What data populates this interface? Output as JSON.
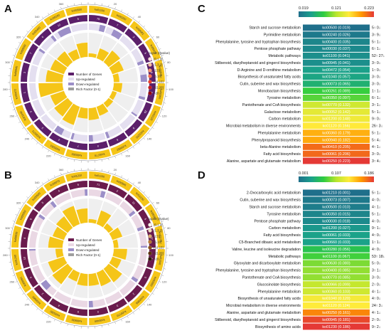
{
  "panels": {
    "a": "A",
    "b": "B",
    "c": "C",
    "d": "D"
  },
  "colors": {
    "yellow": "#f5c518",
    "purple": "#5b1f6a",
    "lavender": "#9c8fc8",
    "ring_gray": "#bdbdbd",
    "gradient": [
      "#1f6f8b",
      "#1aa08c",
      "#2ecc40",
      "#b8e62d",
      "#ffeb3b",
      "#ff9800",
      "#e53935"
    ]
  },
  "legend_a": {
    "title_a": "-log10 (Qvalue)",
    "scale_a": [
      "(0,1.3]",
      "(1.3,2]",
      "(2,5]",
      "(5,10]",
      "(10,15]",
      "(15,20]",
      ">20"
    ],
    "dot_colors_a": [
      "#fde0dd",
      "#fcbba1",
      "#fc9272",
      "#fb6a4a",
      "#ef3b2c",
      "#cb181d",
      "#99000d"
    ],
    "items_a": [
      "Number of Genes",
      "Up-regulated",
      "Down-regulated",
      "Rich Factor (0-1)"
    ]
  },
  "legend_b": {
    "title_b": "log10 (Qvalue)",
    "scale_b": [
      "(0,1.3]",
      "(1.3,2]",
      "(2,5]",
      "(5,10]",
      "(10,15]",
      "(15,20]",
      ">20"
    ],
    "dot_colors_b": [
      "#fff5eb",
      "#f3dcc0",
      "#d9a66f",
      "#b97531",
      "#8c4c16",
      "#5e2e0c",
      "#2e1503"
    ],
    "items_b": [
      "Number of Genes",
      "Up-regulated",
      "Down-regulated",
      "Rich Factor (0-1)"
    ]
  },
  "chart_data": [
    {
      "type": "table",
      "panel": "C",
      "colorbar_ticks": [
        "0.019",
        "0.121",
        "0.223"
      ],
      "colorbar_range": [
        0.019,
        0.223
      ],
      "rows": [
        {
          "name": "Starch and sucrose metabolism",
          "id": "ko00500",
          "q": 0.019,
          "label": "ko00500 (0.019)",
          "right": "5↑ 0↓"
        },
        {
          "name": "Pyrimidine metabolism",
          "id": "ko00240",
          "q": 0.026,
          "label": "ko00240 (0.026)",
          "right": "3↑ 9↓"
        },
        {
          "name": "Phenylalanine, tyrosine and tryptophan biosynthesis",
          "id": "ko00400",
          "q": 0.035,
          "label": "ko00400 (0.035)",
          "right": "5↑ 1↓"
        },
        {
          "name": "Pentose phosphate pathway",
          "id": "ko00030",
          "q": 0.037,
          "label": "ko00030 (0.037)",
          "right": "6↑ 1↓"
        },
        {
          "name": "Metabolic pathways",
          "id": "ko01100",
          "q": 0.041,
          "label": "ko01100 (0.041)",
          "right": "52↑ 27↓"
        },
        {
          "name": "Stilbenoid, diarylheptanoid and gingerol biosynthesis",
          "id": "ko00945",
          "q": 0.041,
          "label": "ko00945 (0.041)",
          "right": "3↑ 0↓"
        },
        {
          "name": "D-Arginine and D-ornithine metabolism",
          "id": "ko00472",
          "q": 0.054,
          "label": "ko00472 (0.054)",
          "right": "1↑ 0↓"
        },
        {
          "name": "Biosynthesis of unsaturated fatty acids",
          "id": "ko01040",
          "q": 0.057,
          "label": "ko01040 (0.057)",
          "right": "3↑ 0↓"
        },
        {
          "name": "Cutin, suberine and wax biosynthesis",
          "id": "ko00073",
          "q": 0.065,
          "label": "ko00073 (0.065)",
          "right": "3↑ 0↓"
        },
        {
          "name": "Monobactam biosynthesis",
          "id": "ko00261",
          "q": 0.089,
          "label": "ko00261 (0.089)",
          "right": "1↑ 1↓"
        },
        {
          "name": "Tyrosine metabolism",
          "id": "ko00350",
          "q": 0.097,
          "label": "ko00350 (0.097)",
          "right": "6↑ 1↓"
        },
        {
          "name": "Pantothenate and CoA biosynthesis",
          "id": "ko00770",
          "q": 0.132,
          "label": "ko00770 (0.132)",
          "right": "3↑ 1↓"
        },
        {
          "name": "Galactose metabolism",
          "id": "ko00052",
          "q": 0.142,
          "label": "ko00052 (0.142)",
          "right": "5↑ 1↓"
        },
        {
          "name": "Carbon metabolism",
          "id": "ko01200",
          "q": 0.148,
          "label": "ko01200 (0.148)",
          "right": "9↑ 0↓"
        },
        {
          "name": "Microbial metabolism in diverse environments",
          "id": "ko01120",
          "q": 0.156,
          "label": "ko01120 (0.156)",
          "right": "26↑ 3↓"
        },
        {
          "name": "Phenylalanine metabolism",
          "id": "ko00360",
          "q": 0.179,
          "label": "ko00360 (0.179)",
          "right": "5↑ 1↓"
        },
        {
          "name": "Phenylpropanoid biosynthesis",
          "id": "ko00940",
          "q": 0.182,
          "label": "ko00940 (0.182)",
          "right": "5↑ 4↓"
        },
        {
          "name": "beta-Alanine metabolism",
          "id": "ko00410",
          "q": 0.205,
          "label": "ko00410 (0.205)",
          "right": "4↑ 1↓"
        },
        {
          "name": "Fatty acid biosynthesis",
          "id": "ko00061",
          "q": 0.206,
          "label": "ko00061 (0.206)",
          "right": "3↑ 0↓"
        },
        {
          "name": "Alanine, aspartate and glutamate metabolism",
          "id": "ko00250",
          "q": 0.223,
          "label": "ko00250 (0.223)",
          "right": "3↑ 4↓"
        }
      ]
    },
    {
      "type": "table",
      "panel": "D",
      "colorbar_ticks": [
        "0.001",
        "0.107",
        "0.186"
      ],
      "colorbar_range": [
        0.001,
        0.186
      ],
      "rows": [
        {
          "name": "2-Oxocarboxylic acid metabolism",
          "id": "ko01210",
          "q": 0.001,
          "label": "ko01210 (0.001)",
          "right": "5↑ 1↓"
        },
        {
          "name": "Cutin, suberine and wax biosynthesis",
          "id": "ko00073",
          "q": 0.007,
          "label": "ko00073 (0.007)",
          "right": "4↑ 0↓"
        },
        {
          "name": "Starch and sucrose metabolism",
          "id": "ko00500",
          "q": 0.01,
          "label": "ko00500 (0.010)",
          "right": "4↑ 1↓"
        },
        {
          "name": "Tyrosine metabolism",
          "id": "ko00350",
          "q": 0.015,
          "label": "ko00350 (0.015)",
          "right": "5↑ 1↓"
        },
        {
          "name": "Pentose phosphate pathway",
          "id": "ko00030",
          "q": 0.018,
          "label": "ko00030 (0.018)",
          "right": "4↑ 0↓"
        },
        {
          "name": "Carbon metabolism",
          "id": "ko01200",
          "q": 0.027,
          "label": "ko01200 (0.027)",
          "right": "9↑ 1↓"
        },
        {
          "name": "Fatty acid biosynthesis",
          "id": "ko00061",
          "q": 0.033,
          "label": "ko00061 (0.033)",
          "right": "4↑ 0↓"
        },
        {
          "name": "C5-Branched dibasic acid metabolism",
          "id": "ko00660",
          "q": 0.033,
          "label": "ko00660 (0.033)",
          "right": "1↑ 1↓"
        },
        {
          "name": "Valine, leucine and isoleucine degradation",
          "id": "ko00280",
          "q": 0.056,
          "label": "ko00280 (0.056)",
          "right": "4↑ 0↓"
        },
        {
          "name": "Metabolic pathways",
          "id": "ko01100",
          "q": 0.067,
          "label": "ko01100 (0.067)",
          "right": "53↑ 18↓"
        },
        {
          "name": "Glyoxylate and dicarboxylate metabolism",
          "id": "ko00630",
          "q": 0.08,
          "label": "ko00630 (0.080)",
          "right": "5↑ 0↓"
        },
        {
          "name": "Phenylalanine, tyrosine and tryptophan biosynthesis",
          "id": "ko00400",
          "q": 0.085,
          "label": "ko00400 (0.085)",
          "right": "3↑ 1↓"
        },
        {
          "name": "Pantothenate and CoA biosynthesis",
          "id": "ko00770",
          "q": 0.085,
          "label": "ko00770 (0.085)",
          "right": "3↑ 0↓"
        },
        {
          "name": "Glucosinolate biosynthesis",
          "id": "ko00966",
          "q": 0.099,
          "label": "ko00966 (0.099)",
          "right": "2↑ 0↓"
        },
        {
          "name": "Phenylalanine metabolism",
          "id": "ko00360",
          "q": 0.103,
          "label": "ko00360 (0.103)",
          "right": "4↑ 1↓"
        },
        {
          "name": "Biosynthesis of unsaturated fatty acids",
          "id": "ko01040",
          "q": 0.12,
          "label": "ko01040 (0.120)",
          "right": "4↑ 0↓"
        },
        {
          "name": "Microbial metabolism in diverse environments",
          "id": "ko01120",
          "q": 0.124,
          "label": "ko01120 (0.124)",
          "right": "24↑ 3↓"
        },
        {
          "name": "Alanine, aspartate and glutamate metabolism",
          "id": "ko00250",
          "q": 0.161,
          "label": "ko00250 (0.161)",
          "right": "4↑ 1↓"
        },
        {
          "name": "Stilbenoid, diarylheptanoid and gingerol biosynthesis",
          "id": "ko00945",
          "q": 0.181,
          "label": "ko00945 (0.181)",
          "right": "2↑ 0↓"
        },
        {
          "name": "Biosynthesis of amino acids",
          "id": "ko01230",
          "q": 0.186,
          "label": "ko01230 (0.186)",
          "right": "9↑ 2↓"
        }
      ]
    },
    {
      "type": "circular",
      "panel": "A",
      "outer_ids": [
        "ko01100",
        "ko00250",
        "ko00061",
        "ko00410",
        "ko00940",
        "ko00360",
        "ko01120",
        "ko01200",
        "ko00052",
        "ko00770",
        "ko00350",
        "ko00261",
        "ko00073",
        "ko01040",
        "ko00472",
        "ko00945",
        "ko00030",
        "ko00400",
        "ko00240",
        "ko00500"
      ],
      "genes": [
        79,
        7,
        3,
        5,
        9,
        6,
        29,
        9,
        6,
        4,
        7,
        2,
        3,
        3,
        1,
        3,
        7,
        6,
        12,
        5
      ],
      "up": [
        52,
        3,
        3,
        4,
        5,
        5,
        26,
        9,
        5,
        3,
        6,
        1,
        3,
        3,
        1,
        3,
        6,
        5,
        3,
        5
      ],
      "down": [
        27,
        4,
        0,
        1,
        4,
        1,
        3,
        0,
        1,
        1,
        1,
        1,
        0,
        0,
        0,
        0,
        1,
        1,
        9,
        0
      ],
      "rich": [
        0.08,
        0.22,
        0.3,
        0.25,
        0.12,
        0.18,
        0.1,
        0.12,
        0.2,
        0.25,
        0.22,
        0.4,
        0.35,
        0.3,
        0.5,
        0.35,
        0.3,
        0.28,
        0.2,
        0.3
      ],
      "qcat": [
        1,
        0,
        0,
        0,
        0,
        0,
        0,
        0,
        0,
        0,
        0,
        0,
        1,
        1,
        1,
        1,
        1,
        1,
        1,
        1
      ],
      "scale_ticks": [
        "0",
        "20",
        "40",
        "60",
        "80",
        "100",
        "120",
        "140",
        "160",
        "180",
        "200",
        "220",
        "240",
        "260",
        "280",
        "300",
        "320",
        "340",
        "360"
      ]
    },
    {
      "type": "circular",
      "panel": "B",
      "outer_ids": [
        "ko01100",
        "ko00945",
        "ko01230",
        "ko00250",
        "ko01120",
        "ko01040",
        "ko00360",
        "ko00966",
        "ko00770",
        "ko00400",
        "ko00630",
        "ko00280",
        "ko00660",
        "ko00061",
        "ko01200",
        "ko00030",
        "ko00350",
        "ko00500",
        "ko00073",
        "ko01210"
      ],
      "genes": [
        71,
        2,
        11,
        5,
        27,
        4,
        5,
        2,
        3,
        4,
        5,
        4,
        2,
        4,
        10,
        4,
        6,
        5,
        4,
        6
      ],
      "up": [
        53,
        2,
        9,
        4,
        24,
        4,
        4,
        2,
        3,
        3,
        5,
        4,
        1,
        4,
        9,
        4,
        5,
        4,
        4,
        5
      ],
      "down": [
        18,
        0,
        2,
        1,
        3,
        0,
        1,
        0,
        0,
        1,
        0,
        0,
        1,
        0,
        1,
        0,
        1,
        1,
        0,
        1
      ],
      "rich": [
        0.08,
        0.3,
        0.12,
        0.22,
        0.1,
        0.28,
        0.2,
        0.35,
        0.3,
        0.25,
        0.25,
        0.2,
        0.4,
        0.35,
        0.15,
        0.3,
        0.25,
        0.3,
        0.4,
        0.3
      ],
      "qcat": [
        1,
        0,
        0,
        0,
        0,
        0,
        0,
        0,
        1,
        1,
        1,
        1,
        1,
        1,
        1,
        1,
        2,
        2,
        2,
        3
      ],
      "scale_ticks": [
        "0",
        "20",
        "40",
        "60",
        "80",
        "100",
        "120",
        "140",
        "160",
        "180",
        "200",
        "220",
        "240",
        "260",
        "280",
        "300",
        "320",
        "340",
        "360"
      ]
    }
  ]
}
